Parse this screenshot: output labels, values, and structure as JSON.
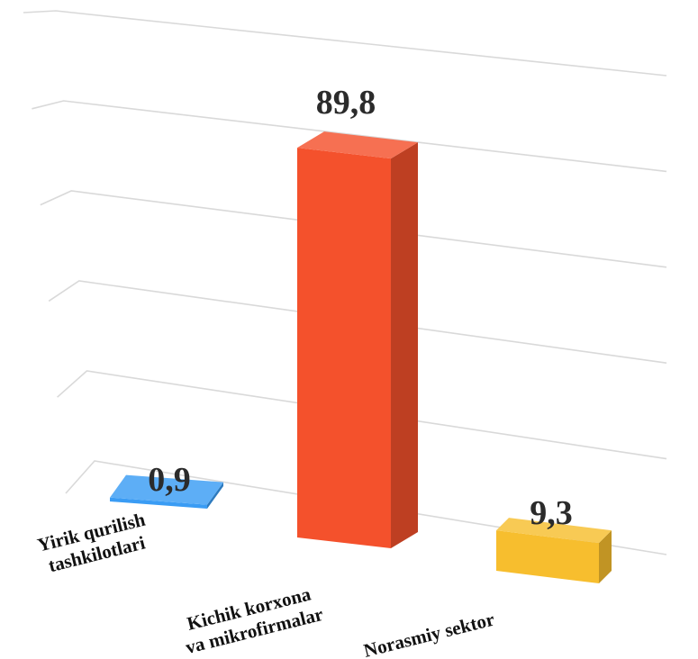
{
  "chart_data": {
    "type": "bar",
    "categories": [
      [
        "Yirik qurilish",
        "tashkilotlari"
      ],
      [
        "Kichik korxona",
        "va mikrofirmalar"
      ],
      [
        "Norasmiy sektor"
      ]
    ],
    "values": [
      0.9,
      89.8,
      9.3
    ],
    "value_labels": [
      "0,9",
      "89,8",
      "9,3"
    ],
    "ylim": [
      0,
      100
    ],
    "grid": true,
    "colors": [
      "#3a9cf4",
      "#f4512c",
      "#f7be2e"
    ]
  }
}
